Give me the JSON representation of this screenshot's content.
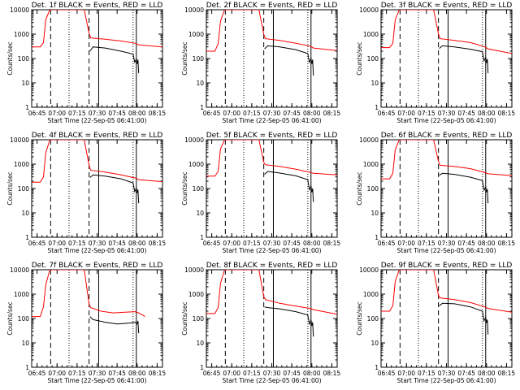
{
  "chart_data": [
    {
      "type": "line",
      "title": "Det. 1f  BLACK = Events, RED = LLD",
      "xlabel": "Start Time (22-Sep-05 06:41:00)",
      "ylabel": "Counts/sec",
      "yscale": "log",
      "ylim": [
        1,
        10000
      ],
      "xlim": [
        6.683,
        8.317
      ],
      "x_ticks": [
        6.75,
        7.0,
        7.25,
        7.5,
        7.75,
        8.0,
        8.25
      ],
      "x_tick_labels": [
        "06:45",
        "07:00",
        "07:15",
        "07:30",
        "07:45",
        "08:00",
        "08:15"
      ],
      "y_tick_labels": [
        "1",
        "10",
        "100",
        "1000",
        "10000"
      ],
      "markers": {
        "dashed": [
          6.92,
          7.4
        ],
        "dotted": [
          7.15,
          7.95
        ],
        "solid": [
          7.52,
          7.99
        ]
      },
      "series": [
        {
          "name": "LLD",
          "color": "#ff0000",
          "x": [
            6.683,
            6.79,
            6.83,
            6.86,
            6.91,
            6.97,
            7.05,
            7.12,
            7.21,
            7.28,
            7.34,
            7.4,
            7.42,
            7.6,
            7.8,
            7.98,
            8.02,
            8.317
          ],
          "y": [
            300,
            300,
            450,
            4000,
            10000,
            10000,
            10000,
            10000,
            10000,
            10000,
            10000,
            1100,
            700,
            620,
            520,
            420,
            360,
            300
          ]
        },
        {
          "name": "Events",
          "color": "#000000",
          "x": [
            7.41,
            7.45,
            7.6,
            7.8,
            7.95,
            7.97,
            7.99,
            8.0,
            8.01,
            8.02
          ],
          "y": [
            200,
            300,
            270,
            200,
            150,
            70,
            95,
            60,
            90,
            25
          ]
        }
      ]
    },
    {
      "type": "line",
      "title": "Det. 2f  BLACK = Events, RED = LLD",
      "xlabel": "Start Time (22-Sep-05 06:41:00)",
      "ylabel": "Counts/sec",
      "yscale": "log",
      "ylim": [
        1,
        10000
      ],
      "xlim": [
        6.683,
        8.317
      ],
      "x_ticks": [
        6.75,
        7.0,
        7.25,
        7.5,
        7.75,
        8.0,
        8.25
      ],
      "x_tick_labels": [
        "06:45",
        "07:00",
        "07:15",
        "07:30",
        "07:45",
        "08:00",
        "08:15"
      ],
      "y_tick_labels": [
        "1",
        "10",
        "100",
        "1000",
        "10000"
      ],
      "markers": {
        "dashed": [
          6.92,
          7.4
        ],
        "dotted": [
          7.15,
          7.95
        ],
        "solid": [
          7.52,
          7.99
        ]
      },
      "series": [
        {
          "name": "LLD",
          "color": "#ff0000",
          "x": [
            6.683,
            6.79,
            6.83,
            6.86,
            6.91,
            6.97,
            7.05,
            7.12,
            7.21,
            7.28,
            7.34,
            7.4,
            7.42,
            7.6,
            7.8,
            7.98,
            8.02,
            8.317
          ],
          "y": [
            200,
            200,
            400,
            3500,
            10000,
            10000,
            10000,
            10000,
            10000,
            10000,
            10000,
            1000,
            650,
            550,
            420,
            320,
            270,
            210
          ]
        },
        {
          "name": "Events",
          "color": "#000000",
          "x": [
            7.41,
            7.45,
            7.6,
            7.8,
            7.95,
            7.97,
            7.99,
            8.0,
            8.01,
            8.02
          ],
          "y": [
            250,
            330,
            300,
            230,
            160,
            70,
            100,
            60,
            90,
            20
          ]
        }
      ]
    },
    {
      "type": "line",
      "title": "Det. 3f  BLACK = Events, RED = LLD",
      "xlabel": "Start Time (22-Sep-05 06:41:00)",
      "ylabel": "Counts/sec",
      "yscale": "log",
      "ylim": [
        1,
        10000
      ],
      "xlim": [
        6.683,
        8.317
      ],
      "x_ticks": [
        6.75,
        7.0,
        7.25,
        7.5,
        7.75,
        8.0,
        8.25
      ],
      "x_tick_labels": [
        "06:45",
        "07:00",
        "07:15",
        "07:30",
        "07:45",
        "08:00",
        "08:15"
      ],
      "y_tick_labels": [
        "1",
        "10",
        "100",
        "1000",
        "10000"
      ],
      "markers": {
        "dashed": [
          6.92,
          7.4
        ],
        "dotted": [
          7.15,
          7.95
        ],
        "solid": [
          7.52,
          7.99
        ]
      },
      "series": [
        {
          "name": "LLD",
          "color": "#ff0000",
          "x": [
            6.683,
            6.79,
            6.83,
            6.86,
            6.91,
            6.97,
            7.05,
            7.12,
            7.21,
            7.28,
            7.34,
            7.4,
            7.42,
            7.6,
            7.8,
            7.98,
            8.02,
            8.317
          ],
          "y": [
            280,
            280,
            420,
            3800,
            10000,
            10000,
            10000,
            10000,
            10000,
            10000,
            10000,
            1050,
            650,
            550,
            450,
            300,
            250,
            160
          ]
        },
        {
          "name": "Events",
          "color": "#000000",
          "x": [
            7.41,
            7.45,
            7.6,
            7.8,
            7.95,
            7.97,
            7.99,
            8.0,
            8.01,
            8.02
          ],
          "y": [
            260,
            330,
            300,
            240,
            190,
            80,
            110,
            65,
            95,
            25
          ]
        }
      ]
    },
    {
      "type": "line",
      "title": "Det. 4f  BLACK = Events, RED = LLD",
      "xlabel": "Start Time (22-Sep-05 06:41:00)",
      "ylabel": "Counts/sec",
      "yscale": "log",
      "ylim": [
        1,
        10000
      ],
      "xlim": [
        6.683,
        8.317
      ],
      "x_ticks": [
        6.75,
        7.0,
        7.25,
        7.5,
        7.75,
        8.0,
        8.25
      ],
      "x_tick_labels": [
        "06:45",
        "07:00",
        "07:15",
        "07:30",
        "07:45",
        "08:00",
        "08:15"
      ],
      "y_tick_labels": [
        "1",
        "10",
        "100",
        "1000",
        "10000"
      ],
      "markers": {
        "dashed": [
          6.92,
          7.4
        ],
        "dotted": [
          7.15,
          7.95
        ],
        "solid": [
          7.52,
          7.99
        ]
      },
      "series": [
        {
          "name": "LLD",
          "color": "#ff0000",
          "x": [
            6.683,
            6.79,
            6.83,
            6.86,
            6.91,
            6.97,
            7.05,
            7.12,
            7.21,
            7.28,
            7.34,
            7.4,
            7.42,
            7.6,
            7.8,
            7.98,
            8.02,
            8.317
          ],
          "y": [
            180,
            180,
            300,
            3000,
            10000,
            10000,
            10000,
            10000,
            10000,
            10000,
            10000,
            900,
            560,
            470,
            360,
            270,
            230,
            190
          ]
        },
        {
          "name": "Events",
          "color": "#000000",
          "x": [
            7.41,
            7.45,
            7.6,
            7.8,
            7.95,
            7.97,
            7.99,
            8.0,
            8.01,
            8.02
          ],
          "y": [
            280,
            360,
            320,
            250,
            170,
            75,
            105,
            65,
            90,
            25
          ]
        }
      ]
    },
    {
      "type": "line",
      "title": "Det. 5f  BLACK = Events, RED = LLD",
      "xlabel": "Start Time (22-Sep-05 06:41:00)",
      "ylabel": "Counts/sec",
      "yscale": "log",
      "ylim": [
        1,
        10000
      ],
      "xlim": [
        6.683,
        8.317
      ],
      "x_ticks": [
        6.75,
        7.0,
        7.25,
        7.5,
        7.75,
        8.0,
        8.25
      ],
      "x_tick_labels": [
        "06:45",
        "07:00",
        "07:15",
        "07:30",
        "07:45",
        "08:00",
        "08:15"
      ],
      "y_tick_labels": [
        "1",
        "10",
        "100",
        "1000",
        "10000"
      ],
      "markers": {
        "dashed": [
          6.92,
          7.4
        ],
        "dotted": [
          7.15,
          7.95
        ],
        "solid": [
          7.52,
          7.99
        ]
      },
      "series": [
        {
          "name": "LLD",
          "color": "#ff0000",
          "x": [
            6.683,
            6.79,
            6.83,
            6.86,
            6.91,
            6.97,
            7.05,
            7.12,
            7.21,
            7.28,
            7.34,
            7.4,
            7.42,
            7.6,
            7.8,
            7.98,
            8.02,
            8.317
          ],
          "y": [
            320,
            320,
            500,
            4200,
            10000,
            10000,
            10000,
            10000,
            10000,
            10000,
            10000,
            1200,
            950,
            800,
            620,
            460,
            420,
            360
          ]
        },
        {
          "name": "Events",
          "color": "#000000",
          "x": [
            7.41,
            7.45,
            7.6,
            7.8,
            7.95,
            7.97,
            7.99,
            8.0,
            8.01,
            8.02
          ],
          "y": [
            380,
            500,
            430,
            330,
            230,
            90,
            125,
            70,
            100,
            28
          ]
        }
      ]
    },
    {
      "type": "line",
      "title": "Det. 6f  BLACK = Events, RED = LLD",
      "xlabel": "Start Time (22-Sep-05 06:41:00)",
      "ylabel": "Counts/sec",
      "yscale": "log",
      "ylim": [
        1,
        10000
      ],
      "xlim": [
        6.683,
        8.317
      ],
      "x_ticks": [
        6.75,
        7.0,
        7.25,
        7.5,
        7.75,
        8.0,
        8.25
      ],
      "x_tick_labels": [
        "06:45",
        "07:00",
        "07:15",
        "07:30",
        "07:45",
        "08:00",
        "08:15"
      ],
      "y_tick_labels": [
        "1",
        "10",
        "100",
        "1000",
        "10000"
      ],
      "markers": {
        "dashed": [
          6.92,
          7.4
        ],
        "dotted": [
          7.15,
          7.95
        ],
        "solid": [
          7.52,
          7.99
        ]
      },
      "series": [
        {
          "name": "LLD",
          "color": "#ff0000",
          "x": [
            6.683,
            6.79,
            6.83,
            6.86,
            6.91,
            6.97,
            7.05,
            7.12,
            7.21,
            7.28,
            7.34,
            7.4,
            7.42,
            7.6,
            7.8,
            7.98,
            8.02,
            8.317
          ],
          "y": [
            250,
            250,
            420,
            3800,
            10000,
            10000,
            10000,
            10000,
            10000,
            10000,
            10000,
            1300,
            900,
            800,
            650,
            450,
            400,
            340
          ]
        },
        {
          "name": "Events",
          "color": "#000000",
          "x": [
            7.41,
            7.45,
            7.6,
            7.8,
            7.95,
            7.97,
            7.99,
            8.0,
            8.01,
            8.02
          ],
          "y": [
            350,
            420,
            380,
            290,
            210,
            85,
            115,
            70,
            95,
            25
          ]
        }
      ]
    },
    {
      "type": "line",
      "title": "Det. 7f  BLACK = Events, RED = LLD",
      "xlabel": "Start Time (22-Sep-05 06:41:00)",
      "ylabel": "Counts/sec",
      "yscale": "log",
      "ylim": [
        1,
        10000
      ],
      "xlim": [
        6.683,
        8.317
      ],
      "x_ticks": [
        6.75,
        7.0,
        7.25,
        7.5,
        7.75,
        8.0,
        8.25
      ],
      "x_tick_labels": [
        "06:45",
        "07:00",
        "07:15",
        "07:30",
        "07:45",
        "08:00",
        "08:15"
      ],
      "y_tick_labels": [
        "1",
        "10",
        "100",
        "1000",
        "10000"
      ],
      "markers": {
        "dashed": [
          6.92,
          7.4
        ],
        "dotted": [
          7.15,
          7.95
        ],
        "solid": [
          7.52,
          7.99
        ]
      },
      "series": [
        {
          "name": "LLD",
          "color": "#ff0000",
          "x": [
            6.683,
            6.79,
            6.83,
            6.86,
            6.91,
            6.97,
            7.05,
            7.12,
            7.21,
            7.28,
            7.34,
            7.4,
            7.42,
            7.55,
            7.7,
            7.85,
            7.98,
            8.02,
            8.1
          ],
          "y": [
            120,
            120,
            300,
            2500,
            10000,
            10000,
            10000,
            10000,
            10000,
            10000,
            10000,
            400,
            280,
            200,
            170,
            180,
            190,
            170,
            120
          ]
        },
        {
          "name": "Events",
          "color": "#000000",
          "x": [
            7.41,
            7.45,
            7.6,
            7.75,
            7.9,
            7.98,
            8.0,
            8.01,
            8.02
          ],
          "y": [
            120,
            90,
            70,
            60,
            65,
            70,
            60,
            80,
            25
          ]
        }
      ]
    },
    {
      "type": "line",
      "title": "Det. 8f  BLACK = Events, RED = LLD",
      "xlabel": "Start Time (22-Sep-05 06:41:00)",
      "ylabel": "Counts/sec",
      "yscale": "log",
      "ylim": [
        1,
        10000
      ],
      "xlim": [
        6.683,
        8.317
      ],
      "x_ticks": [
        6.75,
        7.0,
        7.25,
        7.5,
        7.75,
        8.0,
        8.25
      ],
      "x_tick_labels": [
        "06:45",
        "07:00",
        "07:15",
        "07:30",
        "07:45",
        "08:00",
        "08:15"
      ],
      "y_tick_labels": [
        "1",
        "10",
        "100",
        "1000",
        "10000"
      ],
      "markers": {
        "dashed": [
          6.92,
          7.4
        ],
        "dotted": [
          7.15,
          7.95
        ],
        "solid": [
          7.52,
          7.99
        ]
      },
      "series": [
        {
          "name": "LLD",
          "color": "#ff0000",
          "x": [
            6.683,
            6.79,
            6.83,
            6.86,
            6.91,
            6.97,
            7.05,
            7.12,
            7.21,
            7.28,
            7.34,
            7.4,
            7.42,
            7.6,
            7.8,
            7.98,
            8.02,
            8.317
          ],
          "y": [
            160,
            160,
            280,
            2800,
            10000,
            10000,
            10000,
            10000,
            10000,
            10000,
            10000,
            800,
            600,
            420,
            320,
            260,
            230,
            150
          ]
        },
        {
          "name": "Events",
          "color": "#000000",
          "x": [
            7.41,
            7.45,
            7.6,
            7.8,
            7.95,
            7.97,
            7.99,
            8.0,
            8.01,
            8.02
          ],
          "y": [
            300,
            280,
            250,
            190,
            140,
            60,
            85,
            50,
            70,
            18
          ]
        }
      ]
    },
    {
      "type": "line",
      "title": "Det. 9f  BLACK = Events, RED = LLD",
      "xlabel": "Start Time (22-Sep-05 06:41:00)",
      "ylabel": "Counts/sec",
      "yscale": "log",
      "ylim": [
        1,
        10000
      ],
      "xlim": [
        6.683,
        8.317
      ],
      "x_ticks": [
        6.75,
        7.0,
        7.25,
        7.5,
        7.75,
        8.0,
        8.25
      ],
      "x_tick_labels": [
        "06:45",
        "07:00",
        "07:15",
        "07:30",
        "07:45",
        "08:00",
        "08:15"
      ],
      "y_tick_labels": [
        "1",
        "10",
        "100",
        "1000",
        "10000"
      ],
      "markers": {
        "dashed": [
          6.92,
          7.4
        ],
        "dotted": [
          7.15,
          7.95
        ],
        "solid": [
          7.52,
          7.99
        ]
      },
      "series": [
        {
          "name": "LLD",
          "color": "#ff0000",
          "x": [
            6.683,
            6.79,
            6.83,
            6.86,
            6.91,
            6.97,
            7.05,
            7.12,
            7.21,
            7.28,
            7.34,
            7.4,
            7.42,
            7.6,
            7.8,
            7.98,
            8.02,
            8.317
          ],
          "y": [
            200,
            200,
            330,
            3300,
            10000,
            10000,
            10000,
            10000,
            10000,
            10000,
            10000,
            900,
            700,
            600,
            450,
            300,
            260,
            180
          ]
        },
        {
          "name": "Events",
          "color": "#000000",
          "x": [
            7.41,
            7.45,
            7.6,
            7.8,
            7.95,
            7.97,
            7.99,
            8.0,
            8.01,
            8.02
          ],
          "y": [
            330,
            420,
            400,
            300,
            200,
            80,
            110,
            65,
            90,
            22
          ]
        }
      ]
    }
  ]
}
